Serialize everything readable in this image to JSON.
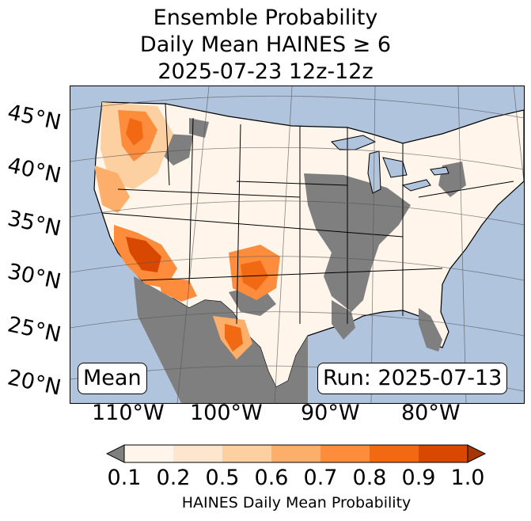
{
  "title": {
    "line1": "Ensemble Probability",
    "line2": "Daily Mean HAINES ≥ 6",
    "line3": "2025-07-23 12z-12z"
  },
  "map": {
    "lat_labels": [
      "45°N",
      "40°N",
      "35°N",
      "30°N",
      "25°N",
      "20°N"
    ],
    "lon_labels": [
      "110°W",
      "100°W",
      "90°W",
      "80°W"
    ],
    "colors": {
      "ocean": "#b0c4de",
      "land": "#ffffff",
      "below_min": "#7f7f7f",
      "bins": [
        "#fff5eb",
        "#fee6ce",
        "#fdd0a2",
        "#fdae6b",
        "#fd8d3c",
        "#f16913",
        "#d94801",
        "#a63603"
      ]
    }
  },
  "labels": {
    "mean": "Mean",
    "run": "Run: 2025-07-13"
  },
  "colorbar": {
    "ticks": [
      "0.1",
      "0.2",
      "0.5",
      "0.6",
      "0.7",
      "0.8",
      "0.9",
      "1.0"
    ],
    "label": "HAINES Daily Mean Probability",
    "extend": "both"
  }
}
